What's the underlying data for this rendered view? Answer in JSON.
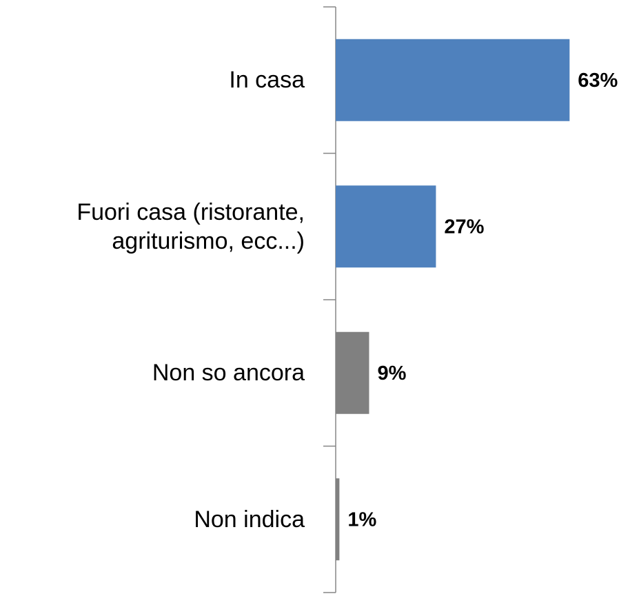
{
  "chart_data": {
    "type": "hbar",
    "categories": [
      "In casa",
      "Fuori casa (ristorante, agriturismo, ecc...)",
      "Non so ancora",
      "Non indica"
    ],
    "values": [
      63,
      27,
      9,
      1
    ],
    "value_labels": [
      "63%",
      "27%",
      "9%",
      "1%"
    ],
    "colors": [
      "#4f81bd",
      "#4f81bd",
      "#808080",
      "#808080"
    ],
    "xlim": [
      0,
      70
    ]
  }
}
